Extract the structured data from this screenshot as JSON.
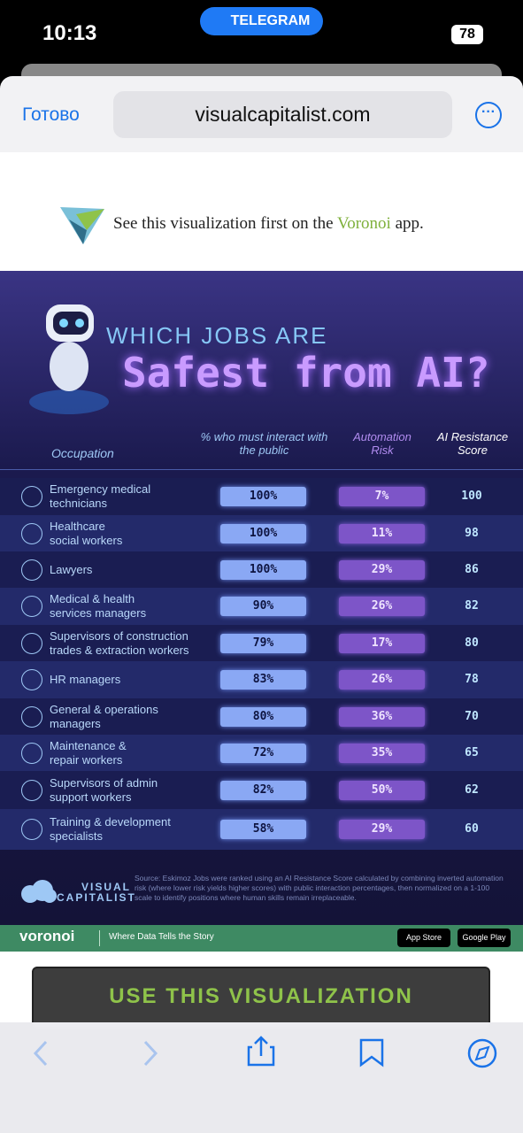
{
  "status_bar": {
    "time": "10:13",
    "app_pill": "TELEGRAM",
    "battery": "78"
  },
  "browser": {
    "done": "Готово",
    "url": "visualcapitalist.com"
  },
  "banner": {
    "text_before": "See this visualization first on the ",
    "app_name": "Voronoi",
    "text_after": " app."
  },
  "infographic": {
    "title_top": "WHICH JOBS ARE",
    "title_main": "Safest from AI?",
    "columns": [
      "Occupation",
      "% who must interact with the public",
      "Automation Risk",
      "AI Resistance Score"
    ],
    "rows": [
      {
        "occupation": [
          "Emergency medical",
          "technicians"
        ],
        "public": "100%",
        "risk": "7%",
        "score": "100"
      },
      {
        "occupation": [
          "Healthcare",
          "social workers"
        ],
        "public": "100%",
        "risk": "11%",
        "score": "98"
      },
      {
        "occupation": [
          "Lawyers"
        ],
        "public": "100%",
        "risk": "29%",
        "score": "86"
      },
      {
        "occupation": [
          "Medical & health",
          "services managers"
        ],
        "public": "90%",
        "risk": "26%",
        "score": "82"
      },
      {
        "occupation": [
          "Supervisors of construction",
          "trades & extraction workers"
        ],
        "public": "79%",
        "risk": "17%",
        "score": "80"
      },
      {
        "occupation": [
          "HR managers"
        ],
        "public": "83%",
        "risk": "26%",
        "score": "78"
      },
      {
        "occupation": [
          "General & operations",
          "managers"
        ],
        "public": "80%",
        "risk": "36%",
        "score": "70"
      },
      {
        "occupation": [
          "Maintenance &",
          "repair workers"
        ],
        "public": "72%",
        "risk": "35%",
        "score": "65"
      },
      {
        "occupation": [
          "Supervisors of admin",
          "support workers"
        ],
        "public": "82%",
        "risk": "50%",
        "score": "62"
      },
      {
        "occupation": [
          "Training & development",
          "specialists"
        ],
        "public": "58%",
        "risk": "29%",
        "score": "60"
      }
    ],
    "source": "Source: Eskimoz Jobs were ranked using an AI Resistance Score calculated by combining inverted automation risk (where lower risk yields higher scores) with public interaction percentages, then normalized on a 1-100 scale to identify positions where human skills remain irreplaceable.",
    "brand": [
      "VISUAL",
      "CAPITALIST"
    ]
  },
  "footer": {
    "brand": "voronoi",
    "tagline": "Where Data Tells the Story",
    "app_store": "App Store",
    "google_play": "Google Play"
  },
  "button": "USE THIS VISUALIZATION"
}
